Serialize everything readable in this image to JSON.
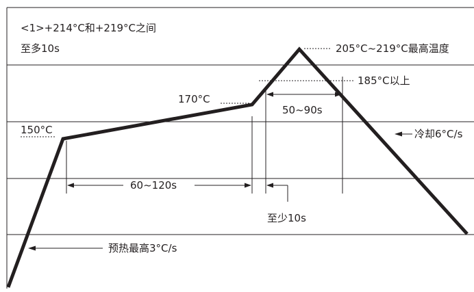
{
  "notes": {
    "line1": "<1>+214°C和+219°C之间",
    "line2": "至多10s"
  },
  "labels": {
    "peak_range": "205°C~219°C最高温度",
    "above_185": "185°C以上",
    "t170": "170°C",
    "t150": "150°C",
    "dur_50_90": "50~90s",
    "dur_60_120": "60~120s",
    "at_least_10": "至少10s",
    "cooling": "冷却6°C/s",
    "preheat": "预热最高3°C/s"
  },
  "colors": {
    "profile": "#231f20",
    "grid": "#231f20",
    "text": "#231f20"
  }
}
